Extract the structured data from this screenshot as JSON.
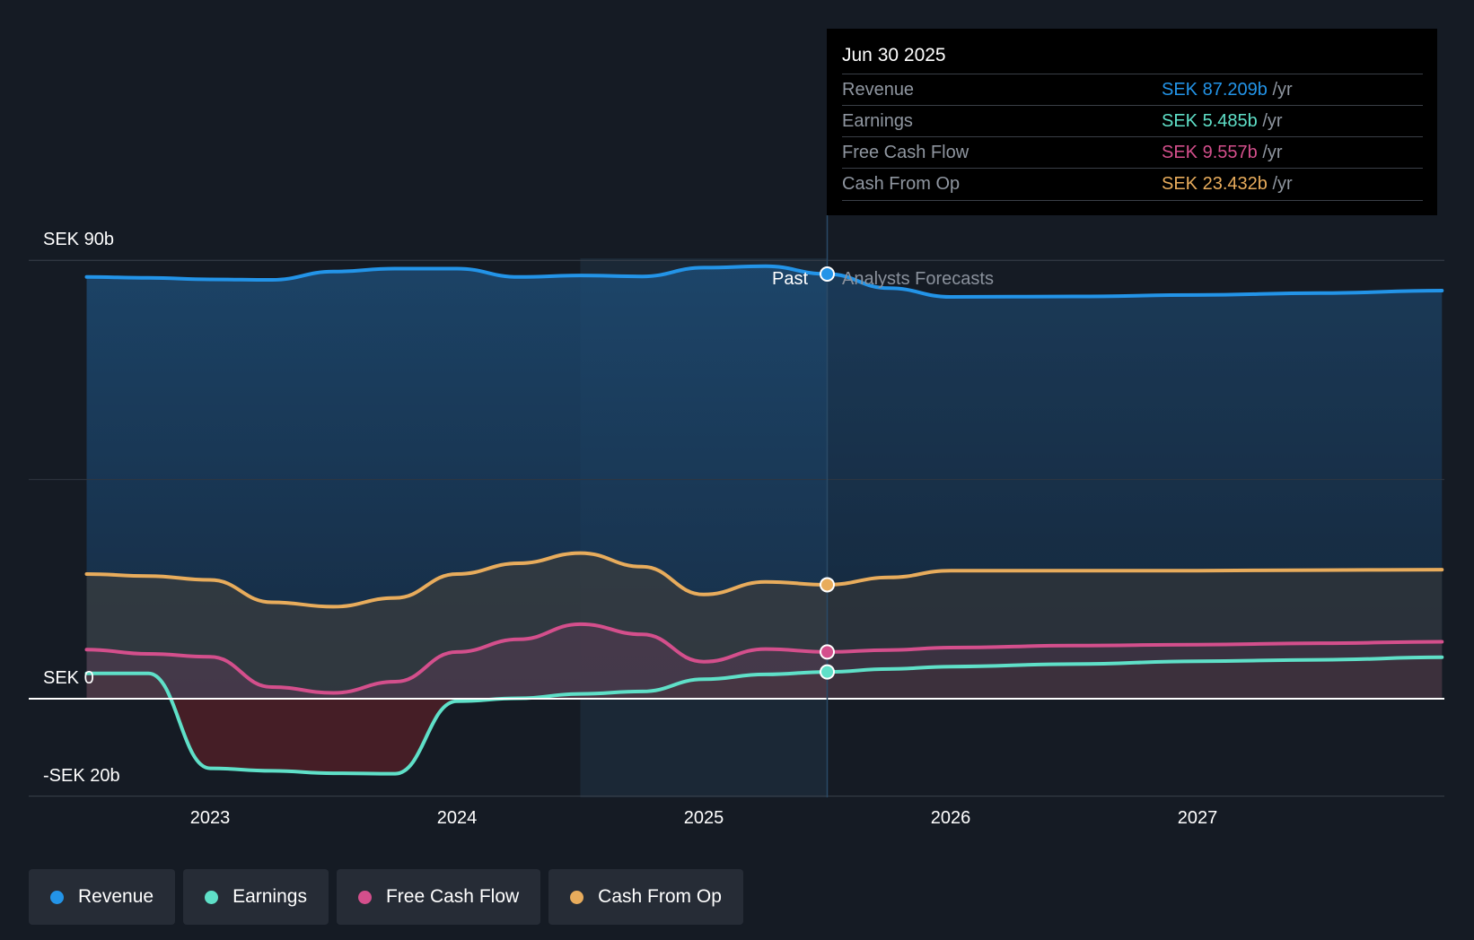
{
  "colors": {
    "revenue": "#2394e8",
    "earnings": "#5fe0c8",
    "fcf": "#d44f8c",
    "cfo": "#e8ac5c",
    "background": "#151b24"
  },
  "divider": {
    "past_label": "Past",
    "forecast_label": "Analysts Forecasts"
  },
  "tooltip": {
    "date": "Jun 30 2025",
    "rows": [
      {
        "name": "Revenue",
        "value": "SEK 87.209b",
        "unit": "/yr"
      },
      {
        "name": "Earnings",
        "value": "SEK 5.485b",
        "unit": "/yr"
      },
      {
        "name": "Free Cash Flow",
        "value": "SEK 9.557b",
        "unit": "/yr"
      },
      {
        "name": "Cash From Op",
        "value": "SEK 23.432b",
        "unit": "/yr"
      }
    ]
  },
  "legend": [
    {
      "label": "Revenue",
      "icon": "legend-dot"
    },
    {
      "label": "Earnings",
      "icon": "legend-dot"
    },
    {
      "label": "Free Cash Flow",
      "icon": "legend-dot"
    },
    {
      "label": "Cash From Op",
      "icon": "legend-dot"
    }
  ],
  "chart_data": {
    "type": "area",
    "title": "",
    "xlabel": "",
    "ylabel": "",
    "x_ticks": [
      "2023",
      "2024",
      "2025",
      "2026",
      "2027"
    ],
    "y_ticks": [
      {
        "label": "SEK 90b",
        "value": 90
      },
      {
        "label": "SEK 0",
        "value": 0
      },
      {
        "label": "-SEK 20b",
        "value": -20
      }
    ],
    "xlim": [
      2022.48,
      2027.99
    ],
    "ylim": [
      -20,
      90
    ],
    "past_end": 2025.5,
    "highlight_start": 2024.5,
    "series": [
      {
        "name": "Revenue",
        "key": "revenue",
        "points": [
          [
            2022.5,
            86.6
          ],
          [
            2022.75,
            86.4
          ],
          [
            2023,
            86.1
          ],
          [
            2023.25,
            86.0
          ],
          [
            2023.5,
            87.7
          ],
          [
            2023.75,
            88.3
          ],
          [
            2024,
            88.3
          ],
          [
            2024.25,
            86.6
          ],
          [
            2024.5,
            86.9
          ],
          [
            2024.75,
            86.7
          ],
          [
            2025,
            88.5
          ],
          [
            2025.25,
            88.8
          ],
          [
            2025.5,
            87.2
          ],
          [
            2025.75,
            84.3
          ],
          [
            2026,
            82.5
          ],
          [
            2026.5,
            82.6
          ],
          [
            2027,
            82.9
          ],
          [
            2027.5,
            83.3
          ],
          [
            2027.99,
            83.8
          ]
        ]
      },
      {
        "name": "Earnings",
        "key": "earnings",
        "points": [
          [
            2022.5,
            5.2
          ],
          [
            2022.75,
            5.2
          ],
          [
            2023,
            -14.3
          ],
          [
            2023.25,
            -14.8
          ],
          [
            2023.5,
            -15.3
          ],
          [
            2023.75,
            -15.4
          ],
          [
            2024,
            -0.5
          ],
          [
            2024.25,
            0.1
          ],
          [
            2024.5,
            1.0
          ],
          [
            2024.75,
            1.5
          ],
          [
            2025,
            4.0
          ],
          [
            2025.25,
            5.0
          ],
          [
            2025.5,
            5.5
          ],
          [
            2025.75,
            6.1
          ],
          [
            2026,
            6.6
          ],
          [
            2026.5,
            7.1
          ],
          [
            2027,
            7.7
          ],
          [
            2027.5,
            8.0
          ],
          [
            2027.99,
            8.5
          ]
        ]
      },
      {
        "name": "Free Cash Flow",
        "key": "fcf",
        "points": [
          [
            2022.5,
            10.1
          ],
          [
            2022.75,
            9.2
          ],
          [
            2023,
            8.6
          ],
          [
            2023.25,
            2.4
          ],
          [
            2023.5,
            1.2
          ],
          [
            2023.75,
            3.5
          ],
          [
            2024,
            9.6
          ],
          [
            2024.25,
            12.2
          ],
          [
            2024.5,
            15.3
          ],
          [
            2024.75,
            13.2
          ],
          [
            2025,
            7.6
          ],
          [
            2025.25,
            10.2
          ],
          [
            2025.5,
            9.6
          ],
          [
            2025.75,
            10.0
          ],
          [
            2026,
            10.5
          ],
          [
            2026.5,
            10.9
          ],
          [
            2027,
            11.1
          ],
          [
            2027.5,
            11.4
          ],
          [
            2027.99,
            11.7
          ]
        ]
      },
      {
        "name": "Cash From Op",
        "key": "cfo",
        "points": [
          [
            2022.5,
            25.6
          ],
          [
            2022.75,
            25.2
          ],
          [
            2023,
            24.4
          ],
          [
            2023.25,
            19.8
          ],
          [
            2023.5,
            18.9
          ],
          [
            2023.75,
            20.7
          ],
          [
            2024,
            25.6
          ],
          [
            2024.25,
            27.8
          ],
          [
            2024.5,
            29.9
          ],
          [
            2024.75,
            27.1
          ],
          [
            2025,
            21.4
          ],
          [
            2025.25,
            24.0
          ],
          [
            2025.5,
            23.4
          ],
          [
            2025.75,
            24.9
          ],
          [
            2026,
            26.3
          ],
          [
            2026.5,
            26.3
          ],
          [
            2027,
            26.3
          ],
          [
            2027.5,
            26.4
          ],
          [
            2027.99,
            26.5
          ]
        ]
      }
    ]
  }
}
